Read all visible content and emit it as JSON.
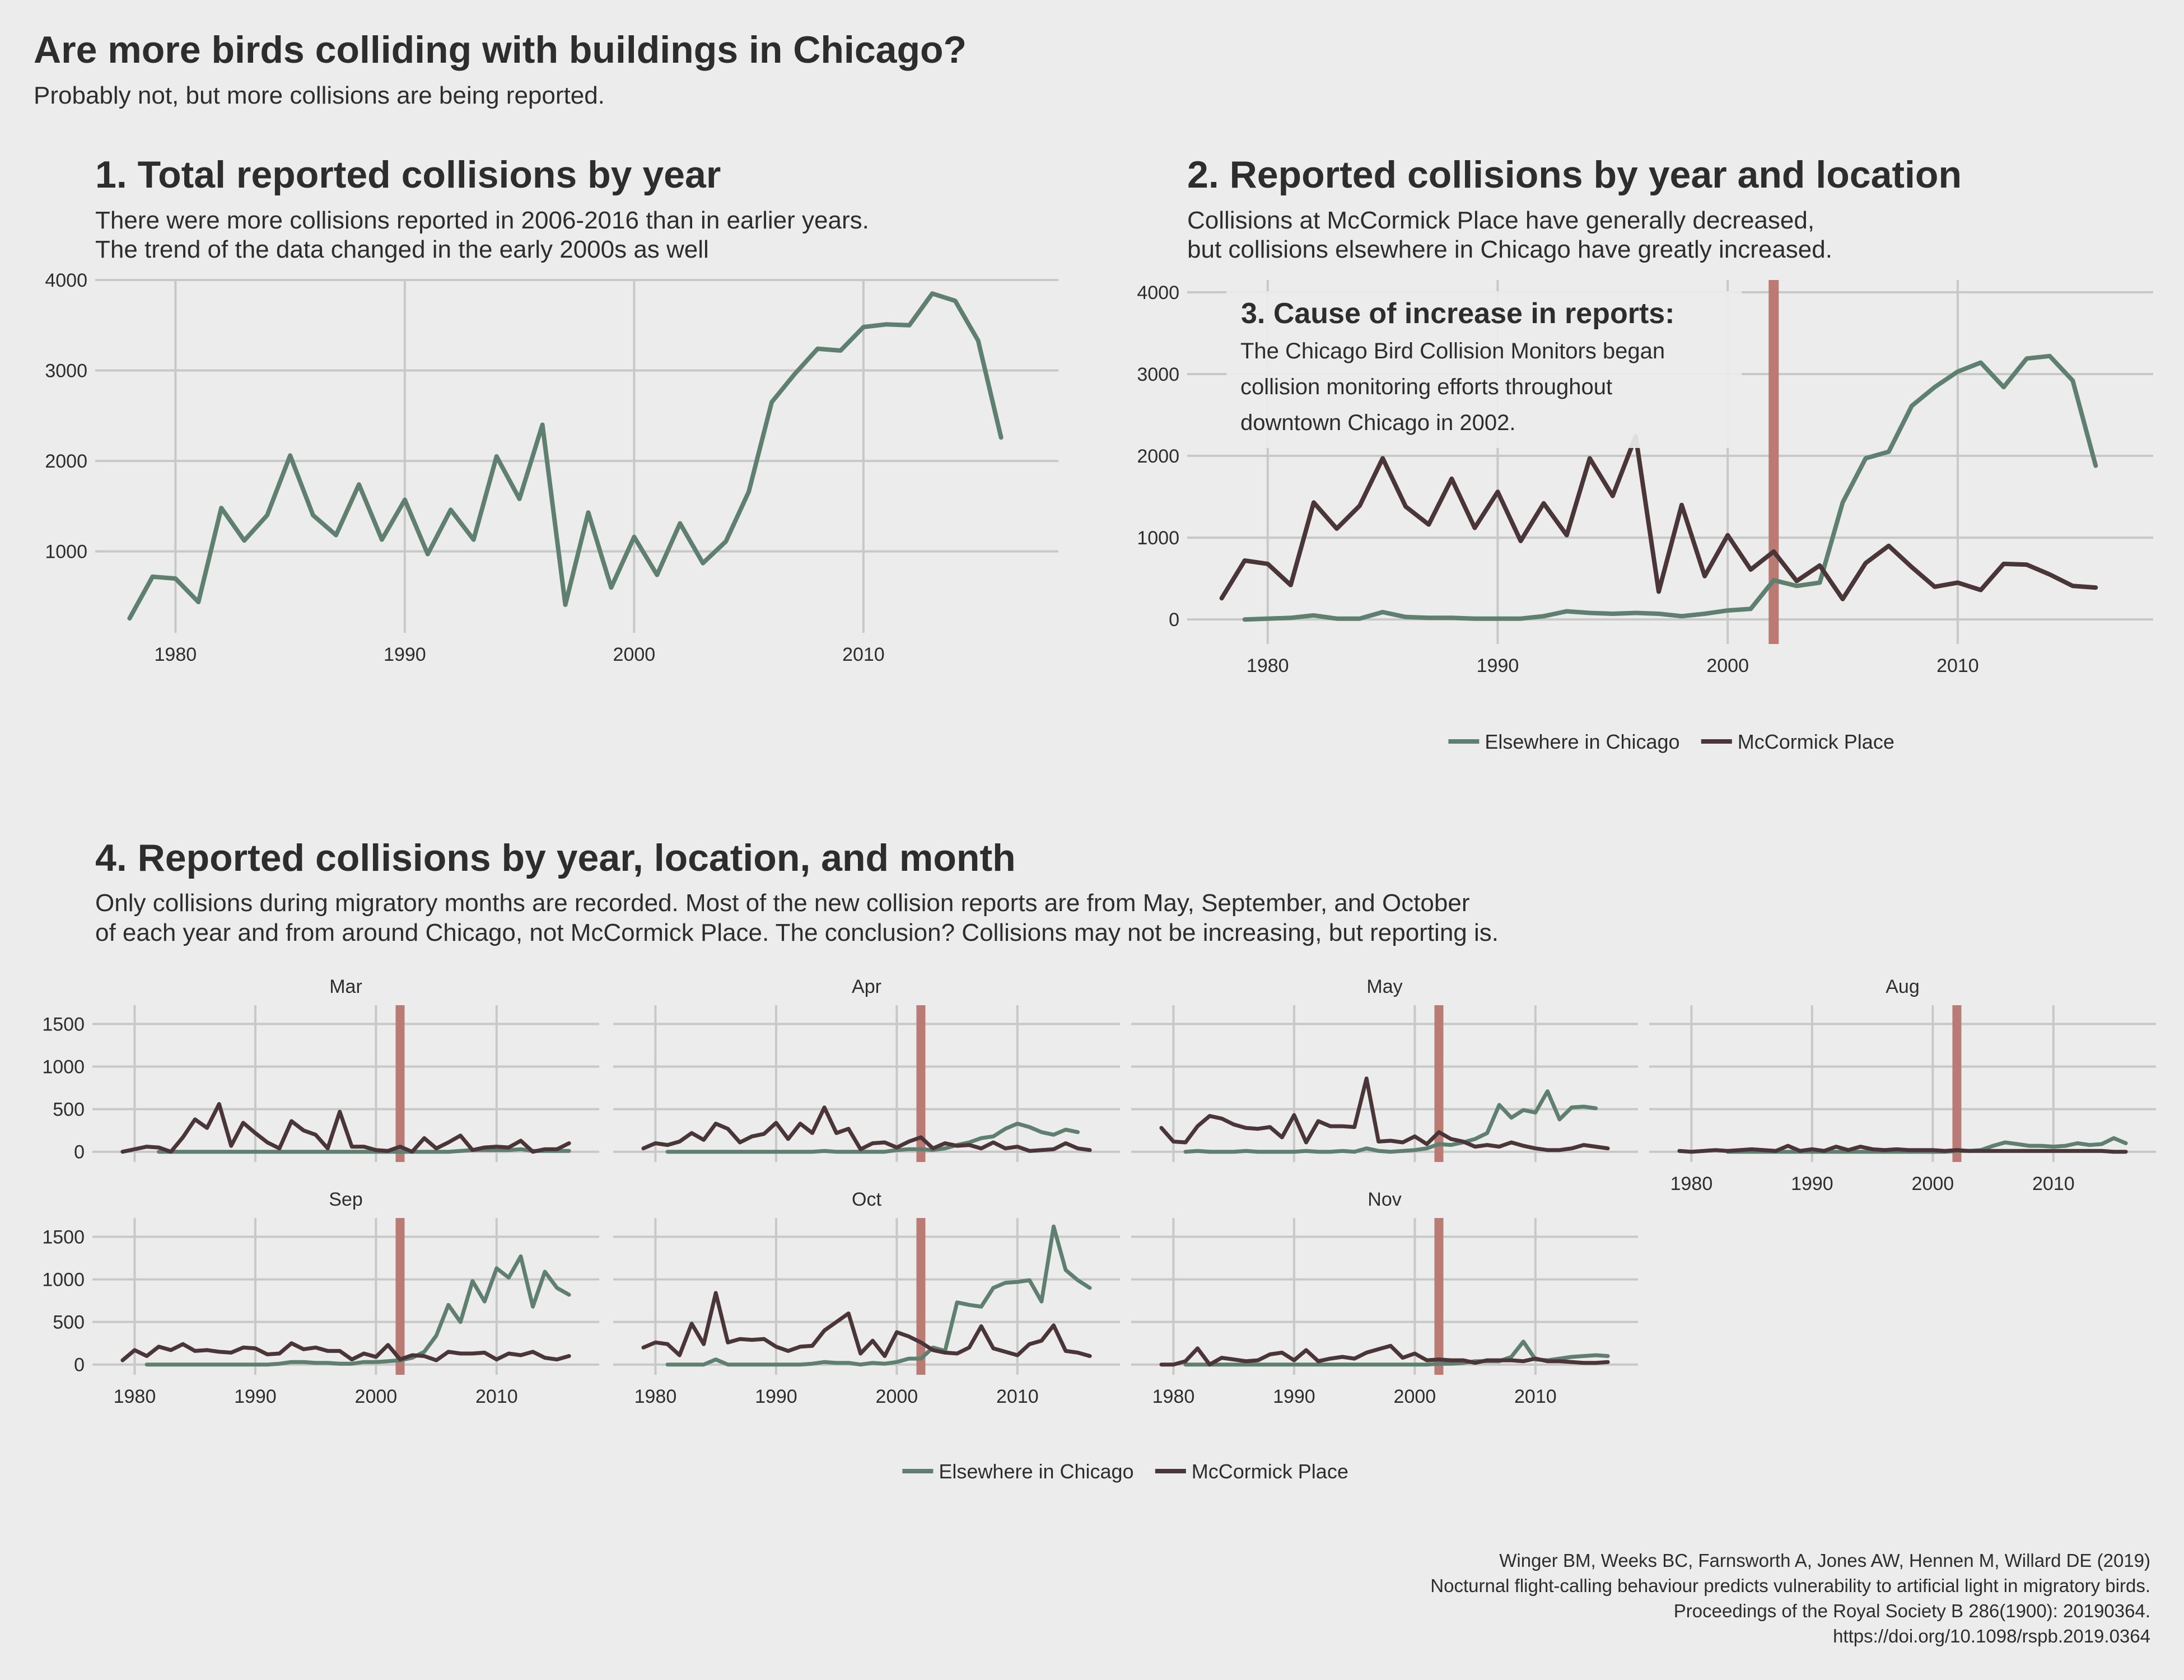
{
  "title": "Are more birds colliding with buildings in Chicago?",
  "subtitle": "Probably not, but more collisions are being reported.",
  "caption": [
    "Winger BM, Weeks BC, Farnsworth A, Jones AW, Hennen M, Willard DE (2019)",
    "Nocturnal flight-calling behaviour predicts vulnerability to artificial light in migratory birds.",
    "Proceedings of the Royal Society B 286(1900): 20190364.",
    "https://doi.org/10.1098/rspb.2019.0364"
  ],
  "colors": {
    "elsewhere": "#5f7f70",
    "mccormick": "#4a3538",
    "marker": "#b97b74",
    "grid": "#c8c8c8",
    "background": "#ececec"
  },
  "chart_data": [
    {
      "type": "line",
      "id": "panel1",
      "title": "1. Total reported collisions by year",
      "subtitle": [
        "There were more collisions reported in 2006-2016 than in earlier years.",
        "The trend of the data changed in the early 2000s as well"
      ],
      "xlim": [
        1976.5,
        2018.5
      ],
      "ylim": [
        100,
        4000
      ],
      "x_ticks": [
        1980,
        1990,
        2000,
        2010
      ],
      "y_ticks": [
        1000,
        2000,
        3000,
        4000
      ],
      "grid": true,
      "series": [
        {
          "key": "elsewhere",
          "x": [
            1978,
            1979,
            1980,
            1981,
            1982,
            1983,
            1984,
            1985,
            1986,
            1987,
            1988,
            1989,
            1990,
            1991,
            1992,
            1993,
            1994,
            1995,
            1996,
            1997,
            1998,
            1999,
            2000,
            2001,
            2002,
            2003,
            2004,
            2005,
            2006,
            2007,
            2008,
            2009,
            2010,
            2011,
            2012,
            2013,
            2014,
            2015,
            2016
          ],
          "values": [
            260,
            720,
            700,
            440,
            1480,
            1120,
            1400,
            2060,
            1400,
            1180,
            1740,
            1130,
            1570,
            970,
            1460,
            1130,
            2050,
            1580,
            2400,
            410,
            1430,
            600,
            1160,
            740,
            1310,
            870,
            1110,
            1660,
            2650,
            2960,
            3240,
            3220,
            3480,
            3510,
            3500,
            3850,
            3770,
            3330,
            2260
          ]
        }
      ]
    },
    {
      "type": "line",
      "id": "panel2",
      "title": "2. Reported collisions by year and location",
      "subtitle": [
        "Collisions at McCormick Place have generally decreased,",
        "but collisions elsewhere in Chicago have greatly increased."
      ],
      "xlim": [
        1976.5,
        2018.5
      ],
      "ylim": [
        -300,
        4150
      ],
      "x_ticks": [
        1980,
        1990,
        2000,
        2010
      ],
      "y_ticks": [
        0,
        1000,
        2000,
        3000,
        4000
      ],
      "grid": true,
      "marker_year": 2002,
      "annotation": {
        "title": "3. Cause of increase in reports:",
        "lines": [
          "The Chicago Bird Collision Monitors began",
          "collision monitoring efforts throughout",
          "downtown Chicago in 2002."
        ]
      },
      "legend": [
        "Elsewhere in Chicago",
        "McCormick Place"
      ],
      "legend_position": "bottom",
      "series": [
        {
          "key": "elsewhere",
          "name": "Elsewhere in Chicago",
          "x": [
            1978,
            1979,
            1980,
            1981,
            1982,
            1983,
            1984,
            1985,
            1986,
            1987,
            1988,
            1989,
            1990,
            1991,
            1992,
            1993,
            1994,
            1995,
            1996,
            1997,
            1998,
            1999,
            2000,
            2001,
            2002,
            2003,
            2004,
            2005,
            2006,
            2007,
            2008,
            2009,
            2010,
            2011,
            2012,
            2013,
            2014,
            2015,
            2016
          ],
          "values": [
            null,
            0,
            10,
            20,
            50,
            10,
            10,
            90,
            30,
            20,
            20,
            10,
            10,
            10,
            40,
            100,
            80,
            70,
            80,
            70,
            40,
            70,
            110,
            130,
            480,
            410,
            450,
            1430,
            1970,
            2050,
            2610,
            2840,
            3030,
            3140,
            2840,
            3190,
            3220,
            2920,
            1880
          ]
        },
        {
          "key": "mccormick",
          "name": "McCormick Place",
          "x": [
            1978,
            1979,
            1980,
            1981,
            1982,
            1983,
            1984,
            1985,
            1986,
            1987,
            1988,
            1989,
            1990,
            1991,
            1992,
            1993,
            1994,
            1995,
            1996,
            1997,
            1998,
            1999,
            2000,
            2001,
            2002,
            2003,
            2004,
            2005,
            2006,
            2007,
            2008,
            2009,
            2010,
            2011,
            2012,
            2013,
            2014,
            2015,
            2016
          ],
          "values": [
            260,
            720,
            680,
            420,
            1430,
            1110,
            1390,
            1970,
            1380,
            1160,
            1720,
            1120,
            1560,
            960,
            1420,
            1030,
            1970,
            1510,
            2240,
            340,
            1400,
            530,
            1030,
            610,
            830,
            470,
            660,
            250,
            690,
            900,
            640,
            400,
            450,
            360,
            680,
            670,
            550,
            410,
            390
          ]
        }
      ]
    },
    {
      "type": "line",
      "id": "panel4",
      "title": "4. Reported collisions by year, location, and month",
      "subtitle": [
        "Only collisions during migratory months are recorded. Most of the new collision reports are from May, September, and October",
        "of each year and from around Chicago, not McCormick Place. The conclusion? Collisions may not be increasing, but reporting is."
      ],
      "xlim": [
        1976.5,
        2018.5
      ],
      "ylim": [
        -120,
        1720
      ],
      "x_ticks": [
        1980,
        1990,
        2000,
        2010
      ],
      "y_ticks": [
        0,
        500,
        1000,
        1500
      ],
      "grid": true,
      "marker_year": 2002,
      "legend": [
        "Elsewhere in Chicago",
        "McCormick Place"
      ],
      "legend_position": "bottom",
      "x": [
        1978,
        1979,
        1980,
        1981,
        1982,
        1983,
        1984,
        1985,
        1986,
        1987,
        1988,
        1989,
        1990,
        1991,
        1992,
        1993,
        1994,
        1995,
        1996,
        1997,
        1998,
        1999,
        2000,
        2001,
        2002,
        2003,
        2004,
        2005,
        2006,
        2007,
        2008,
        2009,
        2010,
        2011,
        2012,
        2013,
        2014,
        2015,
        2016
      ],
      "facets": [
        {
          "label": "Mar",
          "elsewhere": [
            null,
            null,
            null,
            null,
            0,
            0,
            0,
            0,
            0,
            0,
            0,
            0,
            0,
            0,
            0,
            0,
            0,
            0,
            0,
            0,
            0,
            0,
            0,
            0,
            0,
            0,
            0,
            0,
            0,
            10,
            20,
            20,
            20,
            20,
            30,
            10,
            10,
            10,
            10
          ],
          "mccormick": [
            null,
            0,
            30,
            60,
            50,
            0,
            170,
            380,
            280,
            560,
            70,
            340,
            220,
            110,
            40,
            360,
            250,
            200,
            40,
            470,
            60,
            60,
            20,
            10,
            60,
            0,
            160,
            40,
            110,
            190,
            20,
            50,
            60,
            50,
            130,
            0,
            30,
            30,
            100
          ]
        },
        {
          "label": "Apr",
          "elsewhere": [
            null,
            null,
            null,
            0,
            0,
            0,
            0,
            0,
            0,
            0,
            0,
            0,
            0,
            0,
            0,
            0,
            10,
            0,
            0,
            0,
            0,
            0,
            20,
            30,
            30,
            20,
            40,
            80,
            110,
            160,
            180,
            270,
            330,
            290,
            230,
            200,
            260,
            230,
            null
          ],
          "mccormick": [
            null,
            40,
            100,
            80,
            120,
            220,
            140,
            330,
            270,
            110,
            180,
            210,
            340,
            150,
            330,
            220,
            520,
            220,
            270,
            30,
            100,
            110,
            50,
            120,
            170,
            40,
            100,
            70,
            80,
            40,
            110,
            40,
            60,
            10,
            20,
            30,
            100,
            40,
            20
          ]
        },
        {
          "label": "May",
          "elsewhere": [
            null,
            null,
            null,
            0,
            10,
            0,
            0,
            0,
            10,
            0,
            0,
            0,
            0,
            10,
            0,
            0,
            10,
            0,
            40,
            10,
            0,
            10,
            20,
            40,
            90,
            80,
            110,
            150,
            220,
            550,
            400,
            490,
            460,
            710,
            380,
            520,
            530,
            510,
            null
          ],
          "mccormick": [
            null,
            280,
            120,
            110,
            300,
            420,
            390,
            320,
            280,
            270,
            290,
            170,
            430,
            110,
            360,
            300,
            300,
            290,
            860,
            120,
            130,
            110,
            180,
            90,
            230,
            150,
            120,
            60,
            80,
            60,
            110,
            70,
            40,
            20,
            20,
            40,
            80,
            60,
            40
          ]
        },
        {
          "label": "Aug",
          "elsewhere": [
            null,
            null,
            null,
            null,
            null,
            0,
            0,
            0,
            0,
            0,
            0,
            0,
            0,
            0,
            0,
            0,
            0,
            0,
            0,
            0,
            0,
            0,
            0,
            0,
            10,
            10,
            20,
            70,
            110,
            90,
            70,
            70,
            60,
            70,
            100,
            80,
            90,
            160,
            100
          ],
          "mccormick": [
            null,
            10,
            0,
            10,
            20,
            10,
            20,
            30,
            20,
            10,
            70,
            10,
            30,
            10,
            60,
            20,
            60,
            30,
            20,
            30,
            20,
            20,
            20,
            10,
            20,
            10,
            10,
            10,
            10,
            10,
            10,
            10,
            10,
            10,
            10,
            10,
            10,
            0,
            0
          ]
        },
        {
          "label": "Sep",
          "elsewhere": [
            null,
            null,
            null,
            0,
            0,
            0,
            0,
            0,
            0,
            0,
            0,
            0,
            0,
            0,
            10,
            30,
            30,
            20,
            20,
            10,
            10,
            30,
            30,
            40,
            50,
            80,
            150,
            340,
            700,
            500,
            980,
            740,
            1130,
            1020,
            1270,
            680,
            1090,
            900,
            820
          ],
          "mccormick": [
            null,
            50,
            170,
            100,
            210,
            170,
            240,
            160,
            170,
            150,
            140,
            200,
            190,
            120,
            130,
            250,
            180,
            200,
            160,
            160,
            60,
            130,
            90,
            230,
            60,
            110,
            100,
            50,
            150,
            130,
            130,
            140,
            60,
            130,
            110,
            150,
            80,
            60,
            100
          ]
        },
        {
          "label": "Oct",
          "elsewhere": [
            null,
            null,
            null,
            0,
            0,
            0,
            0,
            60,
            0,
            0,
            0,
            0,
            0,
            0,
            0,
            10,
            30,
            20,
            20,
            0,
            20,
            10,
            30,
            70,
            70,
            200,
            160,
            730,
            700,
            680,
            900,
            960,
            970,
            990,
            740,
            1620,
            1110,
            990,
            900
          ],
          "mccormick": [
            null,
            200,
            260,
            240,
            110,
            480,
            240,
            840,
            260,
            300,
            290,
            300,
            210,
            160,
            210,
            220,
            400,
            500,
            600,
            130,
            280,
            100,
            380,
            330,
            260,
            170,
            140,
            130,
            200,
            450,
            190,
            150,
            110,
            240,
            280,
            460,
            160,
            140,
            100
          ]
        },
        {
          "label": "Nov",
          "elsewhere": [
            null,
            null,
            null,
            0,
            0,
            0,
            0,
            0,
            0,
            0,
            0,
            0,
            0,
            0,
            0,
            0,
            0,
            0,
            0,
            0,
            0,
            0,
            0,
            0,
            10,
            10,
            20,
            40,
            40,
            40,
            90,
            270,
            60,
            50,
            70,
            90,
            100,
            110,
            100
          ],
          "mccormick": [
            null,
            0,
            0,
            40,
            190,
            0,
            80,
            60,
            40,
            50,
            120,
            140,
            50,
            170,
            40,
            70,
            90,
            70,
            140,
            180,
            220,
            80,
            130,
            50,
            60,
            50,
            50,
            20,
            50,
            50,
            50,
            40,
            70,
            40,
            40,
            30,
            20,
            20,
            30
          ]
        }
      ]
    }
  ]
}
